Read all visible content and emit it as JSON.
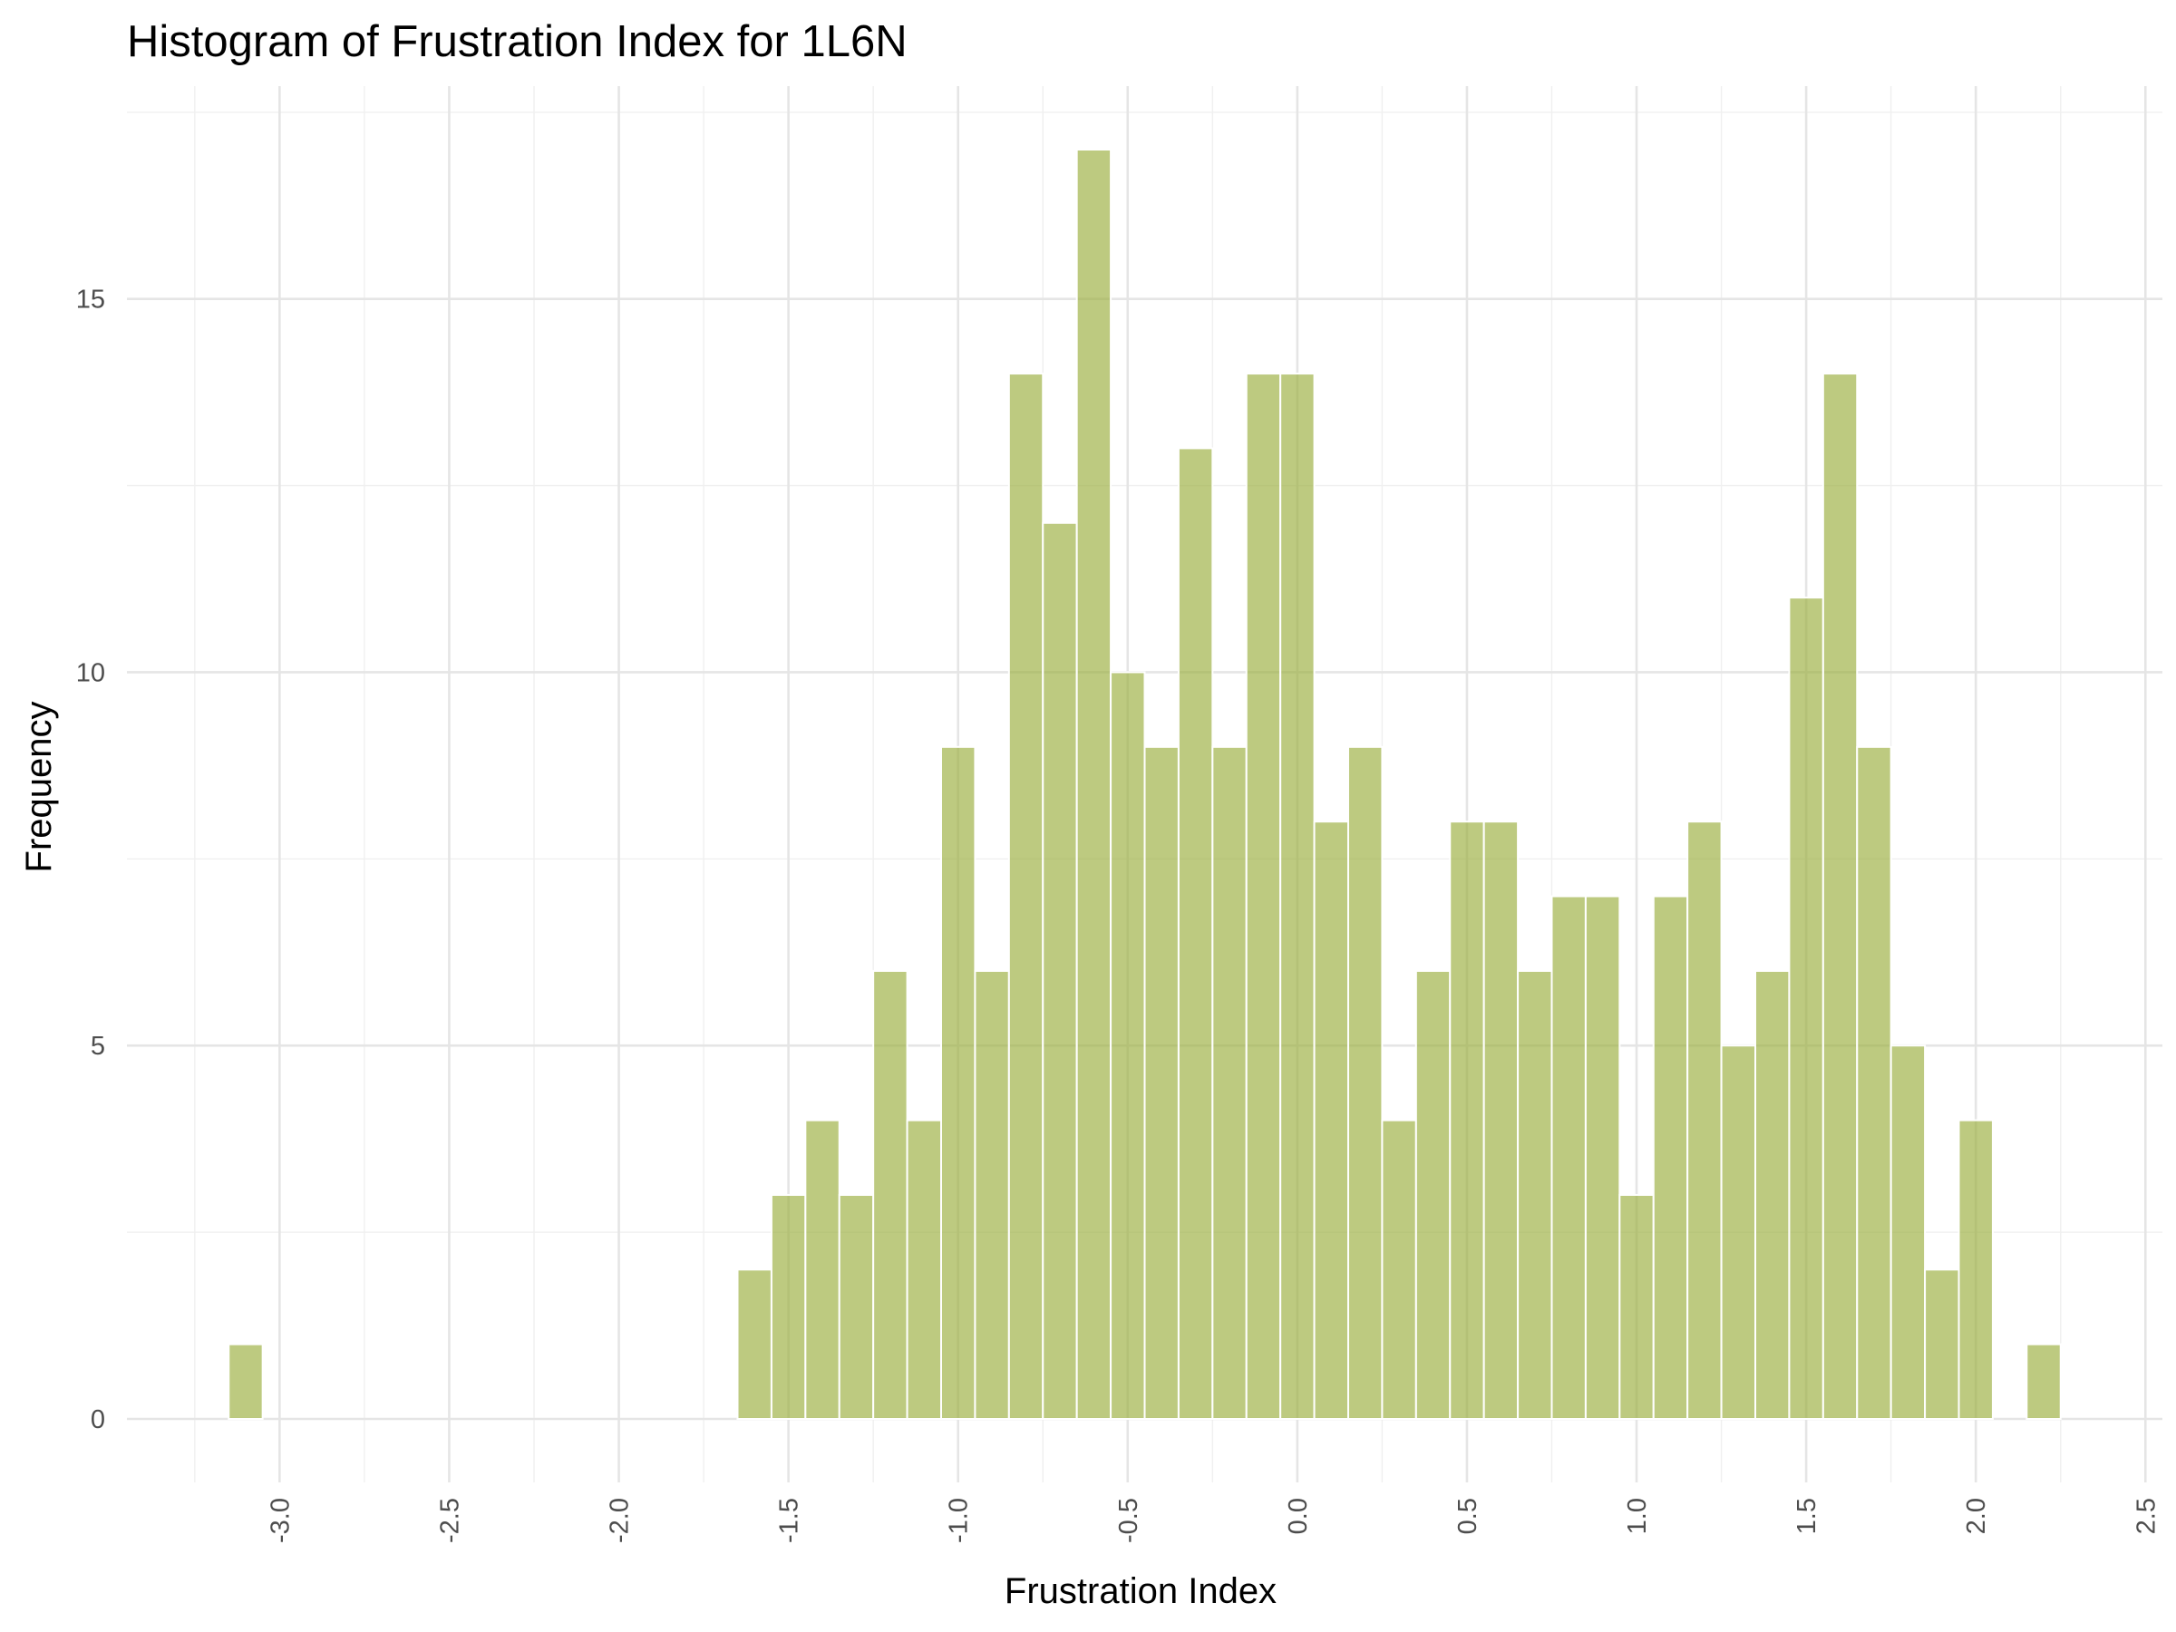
{
  "chart_data": {
    "type": "bar",
    "title": "Histogram of Frustration Index for 1L6N",
    "xlabel": "Frustration Index",
    "ylabel": "Frequency",
    "xlim": [
      -3.45,
      2.55
    ],
    "ylim": [
      -0.85,
      17.85
    ],
    "x_ticks": [
      -3.0,
      -2.5,
      -2.0,
      -1.5,
      -1.0,
      -0.5,
      0.0,
      0.5,
      1.0,
      1.5,
      2.0,
      2.5
    ],
    "x_tick_labels": [
      "-3.0",
      "-2.5",
      "-2.0",
      "-1.5",
      "-1.0",
      "-0.5",
      "0.0",
      "0.5",
      "1.0",
      "1.5",
      "2.0",
      "2.5"
    ],
    "y_ticks": [
      0,
      5,
      10,
      15
    ],
    "y_tick_labels": [
      "0",
      "5",
      "10",
      "15"
    ],
    "grid": true,
    "bar_color": "#9aad3c",
    "bar_opacity": 0.65,
    "bin_width": 0.1,
    "bin_centers": [
      -3.1,
      -1.6,
      -1.5,
      -1.4,
      -1.3,
      -1.2,
      -1.1,
      -1.0,
      -0.9,
      -0.8,
      -0.7,
      -0.6,
      -0.5,
      -0.4,
      -0.3,
      -0.2,
      -0.1,
      0.0,
      0.1,
      0.2,
      0.3,
      0.4,
      0.5,
      0.6,
      0.7,
      0.8,
      0.9,
      1.0,
      1.1,
      1.2,
      1.3,
      1.4,
      1.5,
      1.6,
      1.7,
      1.8,
      1.9,
      2.0,
      2.2
    ],
    "values": [
      1,
      2,
      3,
      4,
      3,
      6,
      4,
      9,
      6,
      14,
      12,
      17,
      10,
      9,
      13,
      9,
      14,
      14,
      8,
      9,
      4,
      6,
      8,
      8,
      6,
      7,
      7,
      3,
      7,
      8,
      5,
      6,
      11,
      14,
      9,
      5,
      2,
      4,
      1
    ]
  }
}
